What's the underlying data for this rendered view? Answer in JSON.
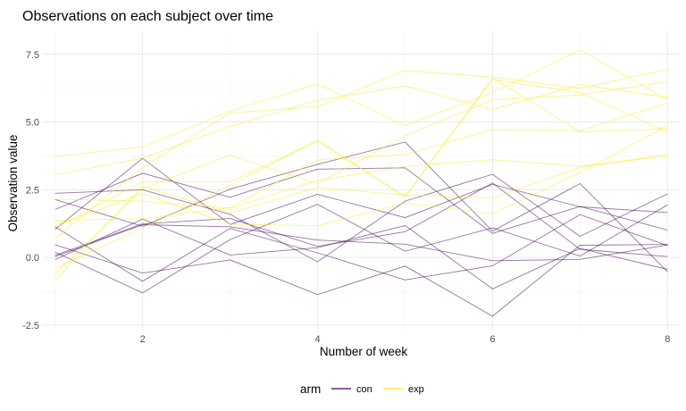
{
  "chart_data": {
    "type": "line",
    "title": "Observations on each subject over time",
    "xlabel": "Number of week",
    "ylabel": "Observation value",
    "xlim": [
      0.85,
      8.15
    ],
    "ylim": [
      -2.7,
      8.35
    ],
    "x_ticks": [
      2,
      4,
      6,
      8
    ],
    "x_tick_labels": [
      "2",
      "4",
      "6",
      "8"
    ],
    "y_ticks": [
      -2.5,
      0,
      2.5,
      5,
      7.5
    ],
    "y_tick_labels": [
      "-2.5",
      "0.0",
      "2.5",
      "5.0",
      "7.5"
    ],
    "grid": true,
    "legend": {
      "title": "arm",
      "placement": "bottom",
      "entries": [
        {
          "label": "con",
          "color": "#440154"
        },
        {
          "label": "exp",
          "color": "#fde725"
        }
      ]
    },
    "x": [
      1,
      2,
      3,
      4,
      5,
      6,
      7,
      8
    ],
    "series": [
      {
        "group": "con",
        "values": [
          0.2,
          -1.31,
          0.66,
          1.96,
          0.23,
          1.09,
          0.05,
          1.94
        ]
      },
      {
        "group": "con",
        "values": [
          1.13,
          -0.88,
          1.07,
          0.17,
          -0.83,
          -0.31,
          1.58,
          0.44
        ]
      },
      {
        "group": "con",
        "values": [
          1.77,
          3.11,
          2.22,
          3.26,
          3.31,
          0.89,
          1.88,
          1.01
        ]
      },
      {
        "group": "con",
        "values": [
          1.04,
          3.66,
          1.22,
          2.33,
          1.47,
          2.7,
          1.87,
          1.66
        ]
      },
      {
        "group": "con",
        "values": [
          0.47,
          -0.58,
          -0.09,
          -1.37,
          -0.32,
          -2.17,
          0.45,
          0.48
        ]
      },
      {
        "group": "con",
        "values": [
          2.37,
          2.5,
          1.59,
          -0.16,
          2.08,
          3.07,
          0.78,
          2.35
        ]
      },
      {
        "group": "con",
        "values": [
          0.03,
          1.21,
          1.13,
          0.64,
          0.49,
          -0.12,
          -0.07,
          0.46
        ]
      },
      {
        "group": "con",
        "values": [
          -0.08,
          1.42,
          0.09,
          0.36,
          1.18,
          -1.16,
          0.33,
          -0.44
        ]
      },
      {
        "group": "con",
        "values": [
          0.08,
          1.24,
          1.44,
          0.41,
          0.95,
          2.75,
          0.3,
          0.03
        ]
      },
      {
        "group": "con",
        "values": [
          2.14,
          1.15,
          2.52,
          3.44,
          4.26,
          0.97,
          2.73,
          -0.53
        ]
      },
      {
        "group": "exp",
        "values": [
          3.05,
          3.67,
          4.84,
          5.8,
          6.33,
          5.46,
          6.38,
          5.91
        ]
      },
      {
        "group": "exp",
        "values": [
          -0.84,
          2.63,
          1.64,
          2.58,
          2.31,
          2.2,
          3.32,
          3.81
        ]
      },
      {
        "group": "exp",
        "values": [
          2.15,
          2.08,
          1.82,
          2.84,
          3.36,
          3.61,
          3.37,
          3.74
        ]
      },
      {
        "group": "exp",
        "values": [
          -0.62,
          2.54,
          3.78,
          2.73,
          4.49,
          5.82,
          6.0,
          6.49
        ]
      },
      {
        "group": "exp",
        "values": [
          0.7,
          3.33,
          5.34,
          5.57,
          6.9,
          6.66,
          6.24,
          6.95
        ]
      },
      {
        "group": "exp",
        "values": [
          3.73,
          4.08,
          5.4,
          6.41,
          4.87,
          6.09,
          7.66,
          5.83
        ]
      },
      {
        "group": "exp",
        "values": [
          1.18,
          2.35,
          1.23,
          1.17,
          2.02,
          1.61,
          3.13,
          4.88
        ]
      },
      {
        "group": "exp",
        "values": [
          1.37,
          1.43,
          1.84,
          3.6,
          3.8,
          4.72,
          4.68,
          5.7
        ]
      },
      {
        "group": "exp",
        "values": [
          -0.4,
          1.08,
          2.66,
          4.32,
          2.23,
          6.63,
          4.64,
          4.75
        ]
      },
      {
        "group": "exp",
        "values": [
          1.09,
          2.8,
          2.8,
          4.3,
          2.25,
          6.57,
          6.09,
          4.64
        ]
      }
    ]
  }
}
